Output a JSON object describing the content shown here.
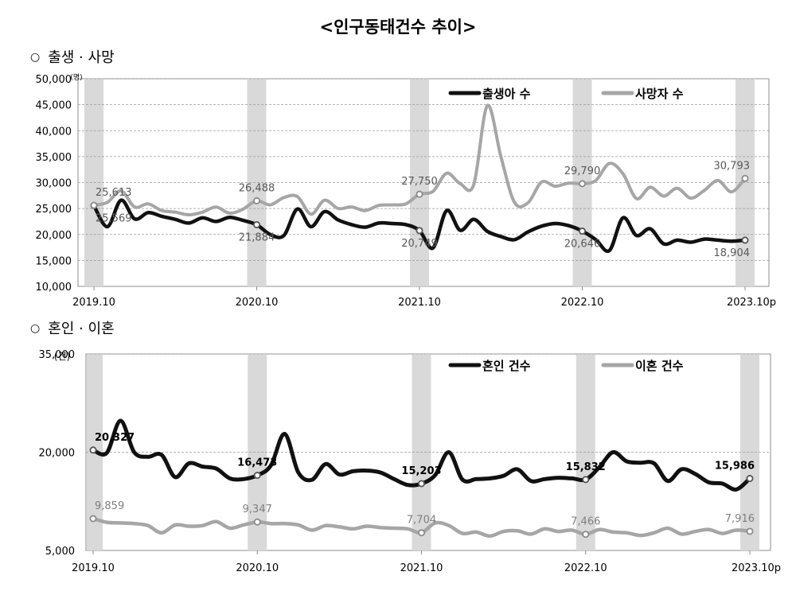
{
  "page_title": "<인구동태건수 추이>",
  "sections": [
    {
      "bullet": "○",
      "title": "출생 · 사망"
    },
    {
      "bullet": "○",
      "title": "혼인 · 이혼"
    }
  ],
  "chart_data": [
    {
      "type": "line",
      "title": "출생 · 사망",
      "ylabel": "(명)",
      "ylim": [
        10000,
        50000
      ],
      "yticks": [
        "10,000",
        "15,000",
        "20,000",
        "25,000",
        "30,000",
        "35,000",
        "40,000",
        "45,000",
        "50,000"
      ],
      "ytick_values": [
        10000,
        15000,
        20000,
        25000,
        30000,
        35000,
        40000,
        45000,
        50000
      ],
      "xticks": [
        "2019.10",
        "2020.10",
        "2021.10",
        "2022.10",
        "2023.10p"
      ],
      "n_points": 49,
      "shaded_months": [
        0,
        12,
        24,
        36,
        48
      ],
      "legend": [
        "출생아 수",
        "사망자 수"
      ],
      "series": [
        {
          "name": "출생아 수",
          "color": "#111111",
          "values": [
            25569,
            21500,
            26600,
            23000,
            24200,
            23500,
            22900,
            22200,
            23200,
            22500,
            23300,
            22700,
            21884,
            20000,
            19800,
            24900,
            21500,
            24400,
            22800,
            21900,
            21400,
            22200,
            22100,
            21900,
            20749,
            17400,
            24600,
            20800,
            22900,
            20600,
            19600,
            19000,
            20500,
            21600,
            22100,
            21700,
            20646,
            19000,
            16900,
            23200,
            19800,
            21100,
            18200,
            18900,
            18500,
            19100,
            18900,
            18700,
            18904
          ],
          "labels": [
            {
              "index": 0,
              "text": "25,569",
              "pos": "below"
            },
            {
              "index": 12,
              "text": "21,884",
              "pos": "below"
            },
            {
              "index": 24,
              "text": "20,749",
              "pos": "below"
            },
            {
              "index": 36,
              "text": "20,646",
              "pos": "below"
            },
            {
              "index": 48,
              "text": "18,904",
              "pos": "below"
            }
          ]
        },
        {
          "name": "사망자 수",
          "color": "#a6a6a6",
          "values": [
            25613,
            26200,
            28400,
            25300,
            25900,
            24600,
            24300,
            23800,
            24300,
            25300,
            24100,
            24900,
            26488,
            25700,
            27100,
            27300,
            23900,
            26600,
            25000,
            25300,
            24600,
            25600,
            25700,
            25900,
            27750,
            28300,
            31800,
            29800,
            29600,
            44800,
            35000,
            26200,
            26100,
            30100,
            29300,
            29900,
            29790,
            30400,
            33700,
            31700,
            26900,
            29100,
            27400,
            28900,
            27000,
            28500,
            30400,
            28200,
            30793
          ],
          "labels": [
            {
              "index": 0,
              "text": "25,613",
              "pos": "above"
            },
            {
              "index": 12,
              "text": "26,488",
              "pos": "above"
            },
            {
              "index": 24,
              "text": "27,750",
              "pos": "above"
            },
            {
              "index": 36,
              "text": "29,790",
              "pos": "above"
            },
            {
              "index": 48,
              "text": "30,793",
              "pos": "above"
            }
          ]
        }
      ]
    },
    {
      "type": "line",
      "title": "혼인 · 이혼",
      "ylabel": "(건)",
      "ylim": [
        5000,
        35000
      ],
      "yticks": [
        "5,000",
        "20,000",
        "35,000"
      ],
      "ytick_values": [
        5000,
        20000,
        35000
      ],
      "xticks": [
        "2019.10",
        "2020.10",
        "2021.10",
        "2022.10",
        "2023.10p"
      ],
      "n_points": 49,
      "shaded_months": [
        0,
        12,
        24,
        36,
        48
      ],
      "legend": [
        "혼인 건수",
        "이혼 건수"
      ],
      "series": [
        {
          "name": "혼인 건수",
          "color": "#111111",
          "values": [
            20327,
            19900,
            24800,
            20000,
            19300,
            19600,
            16200,
            18300,
            17800,
            17500,
            16000,
            15900,
            16473,
            18000,
            22800,
            16900,
            15800,
            18200,
            16600,
            17100,
            17200,
            16900,
            15900,
            15000,
            15203,
            16500,
            20000,
            15800,
            15900,
            16000,
            16400,
            17400,
            15600,
            15900,
            16100,
            16000,
            15832,
            17700,
            20000,
            18600,
            18400,
            18300,
            15600,
            17400,
            16700,
            15400,
            15200,
            14300,
            15986
          ],
          "labels": [
            {
              "index": 0,
              "text": "20,327",
              "pos": "above"
            },
            {
              "index": 12,
              "text": "16,473",
              "pos": "above"
            },
            {
              "index": 24,
              "text": "15,203",
              "pos": "above"
            },
            {
              "index": 36,
              "text": "15,832",
              "pos": "above"
            },
            {
              "index": 48,
              "text": "15,986",
              "pos": "above"
            }
          ]
        },
        {
          "name": "이혼 건수",
          "color": "#a6a6a6",
          "values": [
            9859,
            9300,
            9200,
            9100,
            8800,
            7700,
            8900,
            8700,
            8800,
            9400,
            8400,
            8900,
            9347,
            9100,
            9100,
            8900,
            8100,
            8800,
            8600,
            8300,
            8700,
            8500,
            8400,
            8300,
            7704,
            9200,
            8800,
            7600,
            7800,
            7200,
            7900,
            8000,
            7500,
            8300,
            7900,
            8100,
            7466,
            8200,
            7800,
            7700,
            7300,
            7700,
            8400,
            7500,
            7900,
            8200,
            7600,
            8100,
            7916
          ],
          "labels": [
            {
              "index": 0,
              "text": "9,859",
              "pos": "above"
            },
            {
              "index": 12,
              "text": "9,347",
              "pos": "above"
            },
            {
              "index": 24,
              "text": "7,704",
              "pos": "above"
            },
            {
              "index": 36,
              "text": "7,466",
              "pos": "above"
            },
            {
              "index": 48,
              "text": "7,916",
              "pos": "above"
            }
          ]
        }
      ]
    }
  ]
}
